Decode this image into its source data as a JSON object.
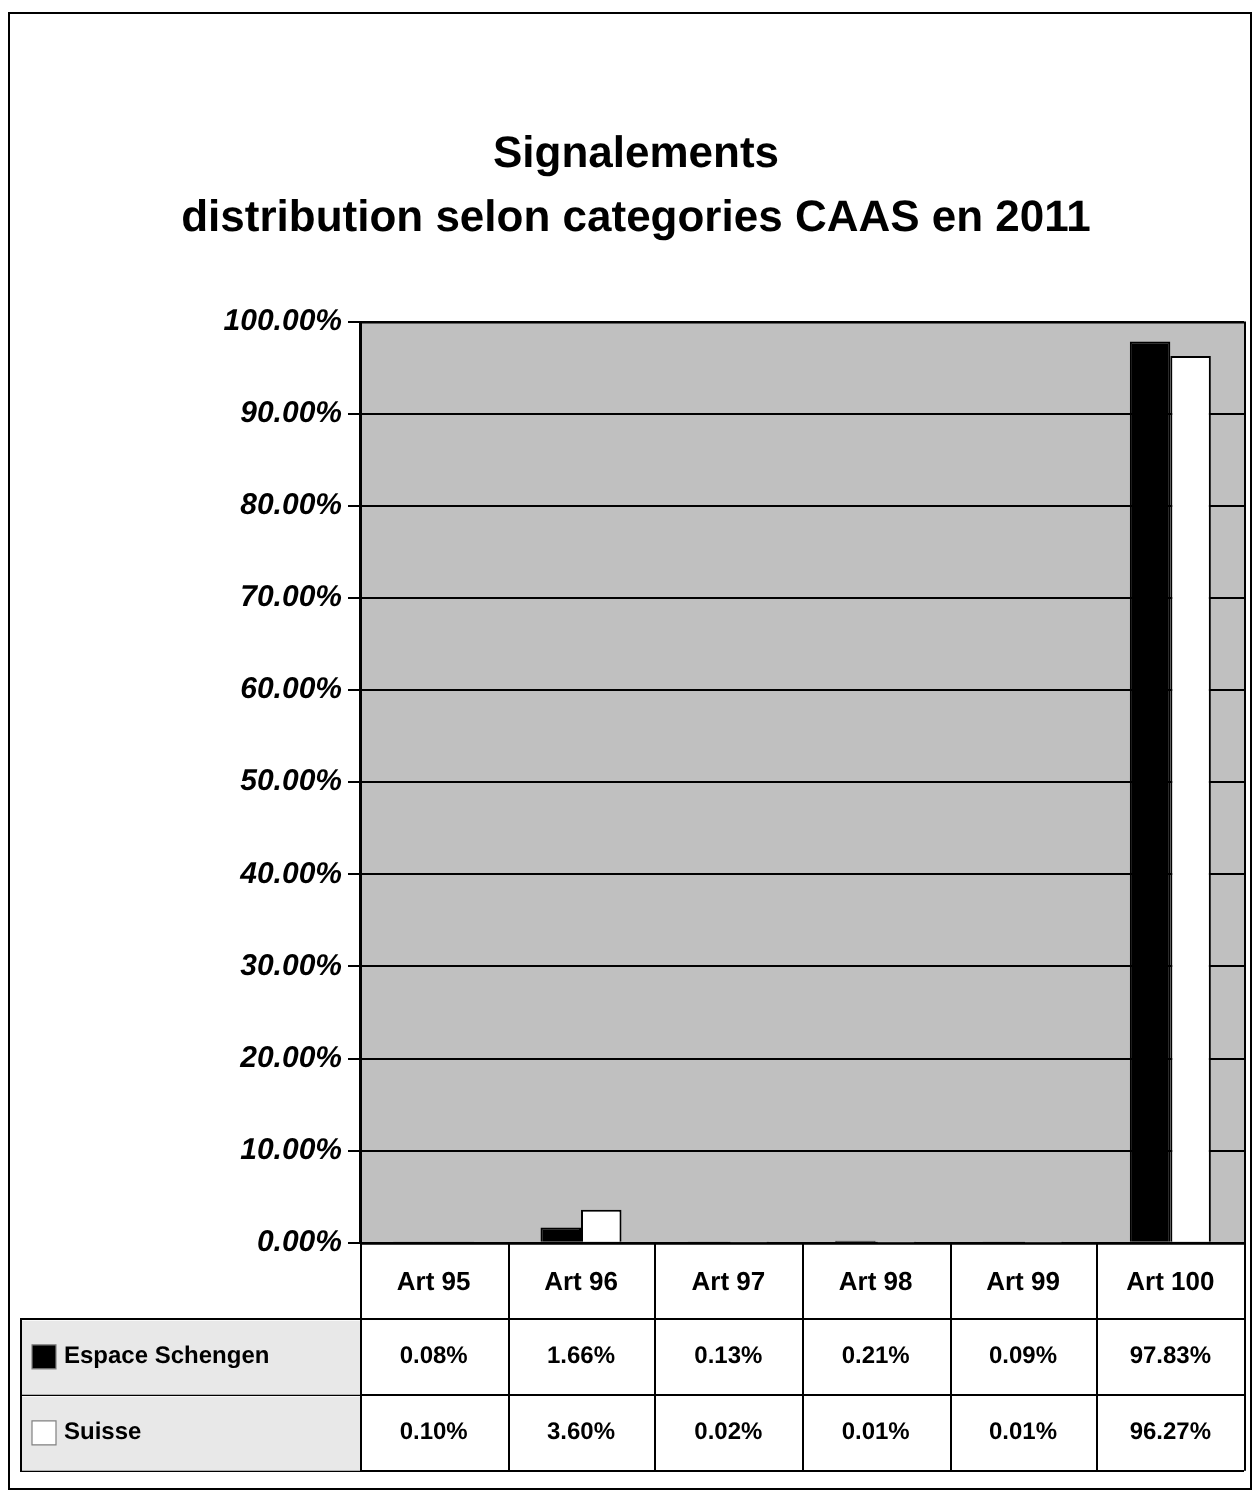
{
  "chart_data": {
    "type": "bar",
    "title": "Signalements",
    "subtitle": "distribution selon categories CAAS en 2011",
    "categories": [
      "Art 95",
      "Art 96",
      "Art 97",
      "Art 98",
      "Art 99",
      "Art 100"
    ],
    "series": [
      {
        "name": "Espace Schengen",
        "color": "#000000",
        "values": [
          0.08,
          1.66,
          0.13,
          0.21,
          0.09,
          97.83
        ],
        "value_labels": [
          "0.08%",
          "1.66%",
          "0.13%",
          "0.21%",
          "0.09%",
          "97.83%"
        ]
      },
      {
        "name": "Suisse",
        "color": "#ffffff",
        "values": [
          0.1,
          3.6,
          0.02,
          0.01,
          0.01,
          96.27
        ],
        "value_labels": [
          "0.10%",
          "3.60%",
          "0.02%",
          "0.01%",
          "0.01%",
          "96.27%"
        ]
      }
    ],
    "ylim": [
      0,
      100
    ],
    "yticks": [
      {
        "value": 0,
        "label": "0.00%"
      },
      {
        "value": 10,
        "label": "10.00%"
      },
      {
        "value": 20,
        "label": "20.00%"
      },
      {
        "value": 30,
        "label": "30.00%"
      },
      {
        "value": 40,
        "label": "40.00%"
      },
      {
        "value": 50,
        "label": "50.00%"
      },
      {
        "value": 60,
        "label": "60.00%"
      },
      {
        "value": 70,
        "label": "70.00%"
      },
      {
        "value": 80,
        "label": "80.00%"
      },
      {
        "value": 90,
        "label": "90.00%"
      },
      {
        "value": 100,
        "label": "100.00%"
      }
    ],
    "grid": "y",
    "legend": "bottom left",
    "data_labels": true
  }
}
